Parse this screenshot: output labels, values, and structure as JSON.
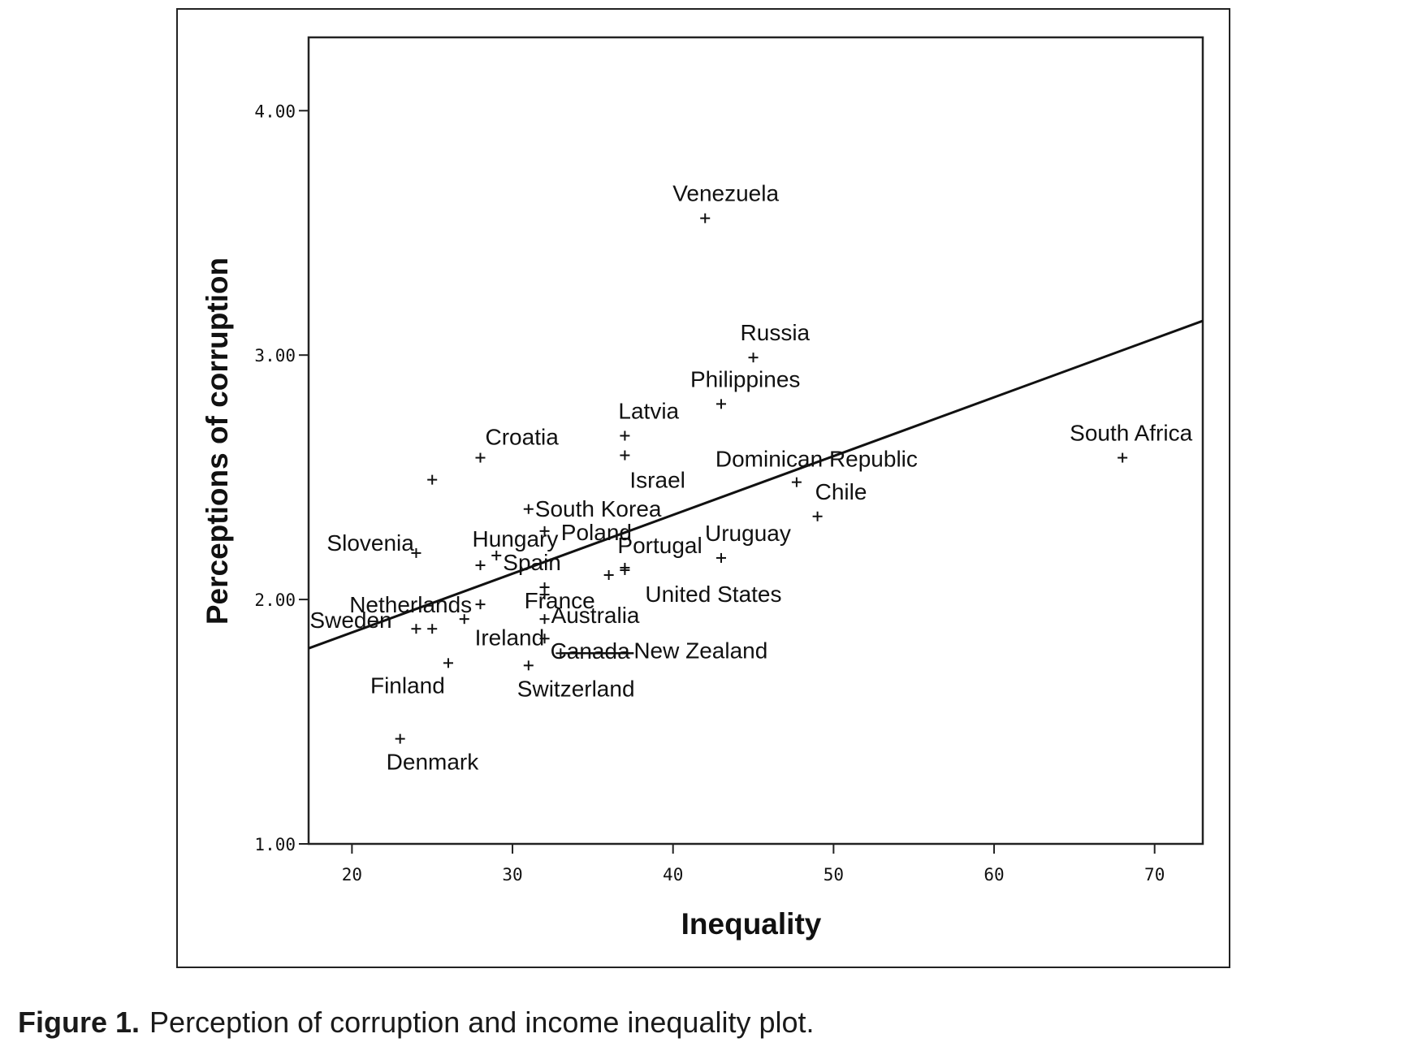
{
  "caption": {
    "label": "Figure 1.",
    "text": "Perception of corruption and income inequality plot."
  },
  "chart_data": {
    "type": "scatter",
    "title": "",
    "xlabel": "Inequality",
    "ylabel": "Perceptions of corruption",
    "xlim": [
      17.3,
      73
    ],
    "ylim": [
      1.0,
      4.3
    ],
    "xticks": [
      20,
      30,
      40,
      50,
      60,
      70
    ],
    "yticks": [
      1.0,
      2.0,
      3.0,
      4.0
    ],
    "xtick_labels": [
      "20",
      "30",
      "40",
      "50",
      "60",
      "70"
    ],
    "ytick_labels": [
      "1.00",
      "2.00",
      "3.00",
      "4.00"
    ],
    "grid": false,
    "legend": "none",
    "marker_color": "#111111",
    "fit_line": {
      "x": [
        17.3,
        73
      ],
      "y": [
        1.8,
        3.14
      ]
    },
    "points": [
      {
        "label": "Venezuela",
        "x": 42,
        "y": 3.56
      },
      {
        "label": "Russia",
        "x": 45,
        "y": 2.99
      },
      {
        "label": "Philippines",
        "x": 43,
        "y": 2.8
      },
      {
        "label": "Latvia",
        "x": 37,
        "y": 2.67
      },
      {
        "label": "Israel",
        "x": 37,
        "y": 2.59
      },
      {
        "label": "South Africa",
        "x": 68,
        "y": 2.58
      },
      {
        "label": "Croatia",
        "x": 28,
        "y": 2.58
      },
      {
        "label": "",
        "x": 25,
        "y": 2.49
      },
      {
        "label": "Poland",
        "x": 31,
        "y": 2.37
      },
      {
        "label": "South Korea",
        "x": 32,
        "y": 2.28
      },
      {
        "label": "Dominican Republic",
        "x": 47.7,
        "y": 2.48
      },
      {
        "label": "Chile",
        "x": 49,
        "y": 2.34
      },
      {
        "label": "Slovenia",
        "x": 24,
        "y": 2.19
      },
      {
        "label": "Spain",
        "x": 29,
        "y": 2.18
      },
      {
        "label": "Hungary",
        "x": 28,
        "y": 2.14
      },
      {
        "label": "Uruguay",
        "x": 43,
        "y": 2.17
      },
      {
        "label": "Portugal",
        "x": 37,
        "y": 2.13
      },
      {
        "label": "",
        "x": 37,
        "y": 2.12
      },
      {
        "label": "",
        "x": 36,
        "y": 2.1
      },
      {
        "label": "France",
        "x": 32,
        "y": 2.05
      },
      {
        "label": "Australia",
        "x": 32,
        "y": 2.02
      },
      {
        "label": "",
        "x": 28,
        "y": 1.98
      },
      {
        "label": "Netherlands",
        "x": 25,
        "y": 1.88
      },
      {
        "label": "Sweden",
        "x": 24,
        "y": 1.88
      },
      {
        "label": "",
        "x": 27,
        "y": 1.92
      },
      {
        "label": "Canada",
        "x": 32,
        "y": 1.92
      },
      {
        "label": "Ireland",
        "x": 32,
        "y": 1.84
      },
      {
        "label": "New Zealand",
        "x": 33,
        "y": 1.78
      },
      {
        "label": "Finland",
        "x": 26,
        "y": 1.74
      },
      {
        "label": "Switzerland",
        "x": 31,
        "y": 1.73
      },
      {
        "label": "Denmark",
        "x": 23,
        "y": 1.43
      }
    ],
    "labels": [
      {
        "text": "Venezuela",
        "x": 42,
        "y": 3.56
      },
      {
        "text": "Russia",
        "x": 45,
        "y": 2.99
      },
      {
        "text": "Philippines",
        "x": 43,
        "y": 2.8
      },
      {
        "text": "Latvia",
        "x": 37,
        "y": 2.67
      },
      {
        "text": "Israel",
        "x": 37,
        "y": 2.59
      },
      {
        "text": "South Africa",
        "x": 68,
        "y": 2.58
      },
      {
        "text": "Croatia",
        "x": 28,
        "y": 2.58
      },
      {
        "text": "Poland",
        "x": 31,
        "y": 2.37
      },
      {
        "text": "South Korea",
        "x": 31,
        "y": 2.37
      },
      {
        "text": "Dominican Republic",
        "x": 47.7,
        "y": 2.48
      },
      {
        "text": "Chile",
        "x": 49,
        "y": 2.34
      },
      {
        "text": "Slovenia",
        "x": 24,
        "y": 2.19
      },
      {
        "text": "Hungary",
        "x": 28,
        "y": 2.14
      },
      {
        "text": "Spain",
        "x": 29,
        "y": 2.18
      },
      {
        "text": "Uruguay",
        "x": 43,
        "y": 2.17
      },
      {
        "text": "Portugal",
        "x": 37,
        "y": 2.13
      },
      {
        "text": "France",
        "x": 32,
        "y": 2.05
      },
      {
        "text": "Australia",
        "x": 32,
        "y": 2.02
      },
      {
        "text": "United States",
        "x": 37,
        "y": 2.12
      },
      {
        "text": "Netherlands",
        "x": 25,
        "y": 1.88
      },
      {
        "text": "Sweden",
        "x": 24,
        "y": 1.88
      },
      {
        "text": "Ireland",
        "x": 32,
        "y": 1.84
      },
      {
        "text": "Canada",
        "x": 32,
        "y": 1.84
      },
      {
        "text": "New Zealand",
        "x": 33,
        "y": 1.78
      },
      {
        "text": "Finland",
        "x": 26,
        "y": 1.74
      },
      {
        "text": "Switzerland",
        "x": 31,
        "y": 1.73
      },
      {
        "text": "Denmark",
        "x": 23,
        "y": 1.43
      }
    ]
  }
}
